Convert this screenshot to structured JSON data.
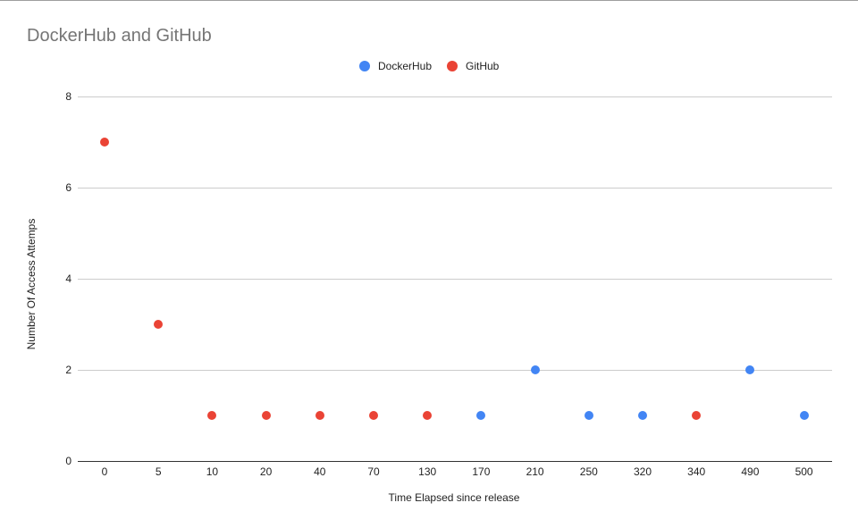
{
  "chart_data": {
    "type": "scatter",
    "title": "DockerHub and GitHub",
    "xlabel": "Time Elapsed since release",
    "ylabel": "Number Of Access Attemps",
    "categories": [
      "0",
      "5",
      "10",
      "20",
      "40",
      "70",
      "130",
      "170",
      "210",
      "250",
      "320",
      "340",
      "490",
      "500"
    ],
    "y_ticks": [
      "0",
      "2",
      "4",
      "6",
      "8"
    ],
    "ylim": [
      0,
      8
    ],
    "grid": true,
    "legend_position": "top",
    "series": [
      {
        "name": "DockerHub",
        "color": "#4285f4",
        "values": [
          null,
          null,
          null,
          null,
          null,
          null,
          null,
          1,
          2,
          1,
          1,
          null,
          2,
          1
        ]
      },
      {
        "name": "GitHub",
        "color": "#ea4335",
        "values": [
          7,
          3,
          1,
          1,
          1,
          1,
          1,
          null,
          null,
          null,
          null,
          1,
          null,
          null
        ]
      }
    ]
  }
}
